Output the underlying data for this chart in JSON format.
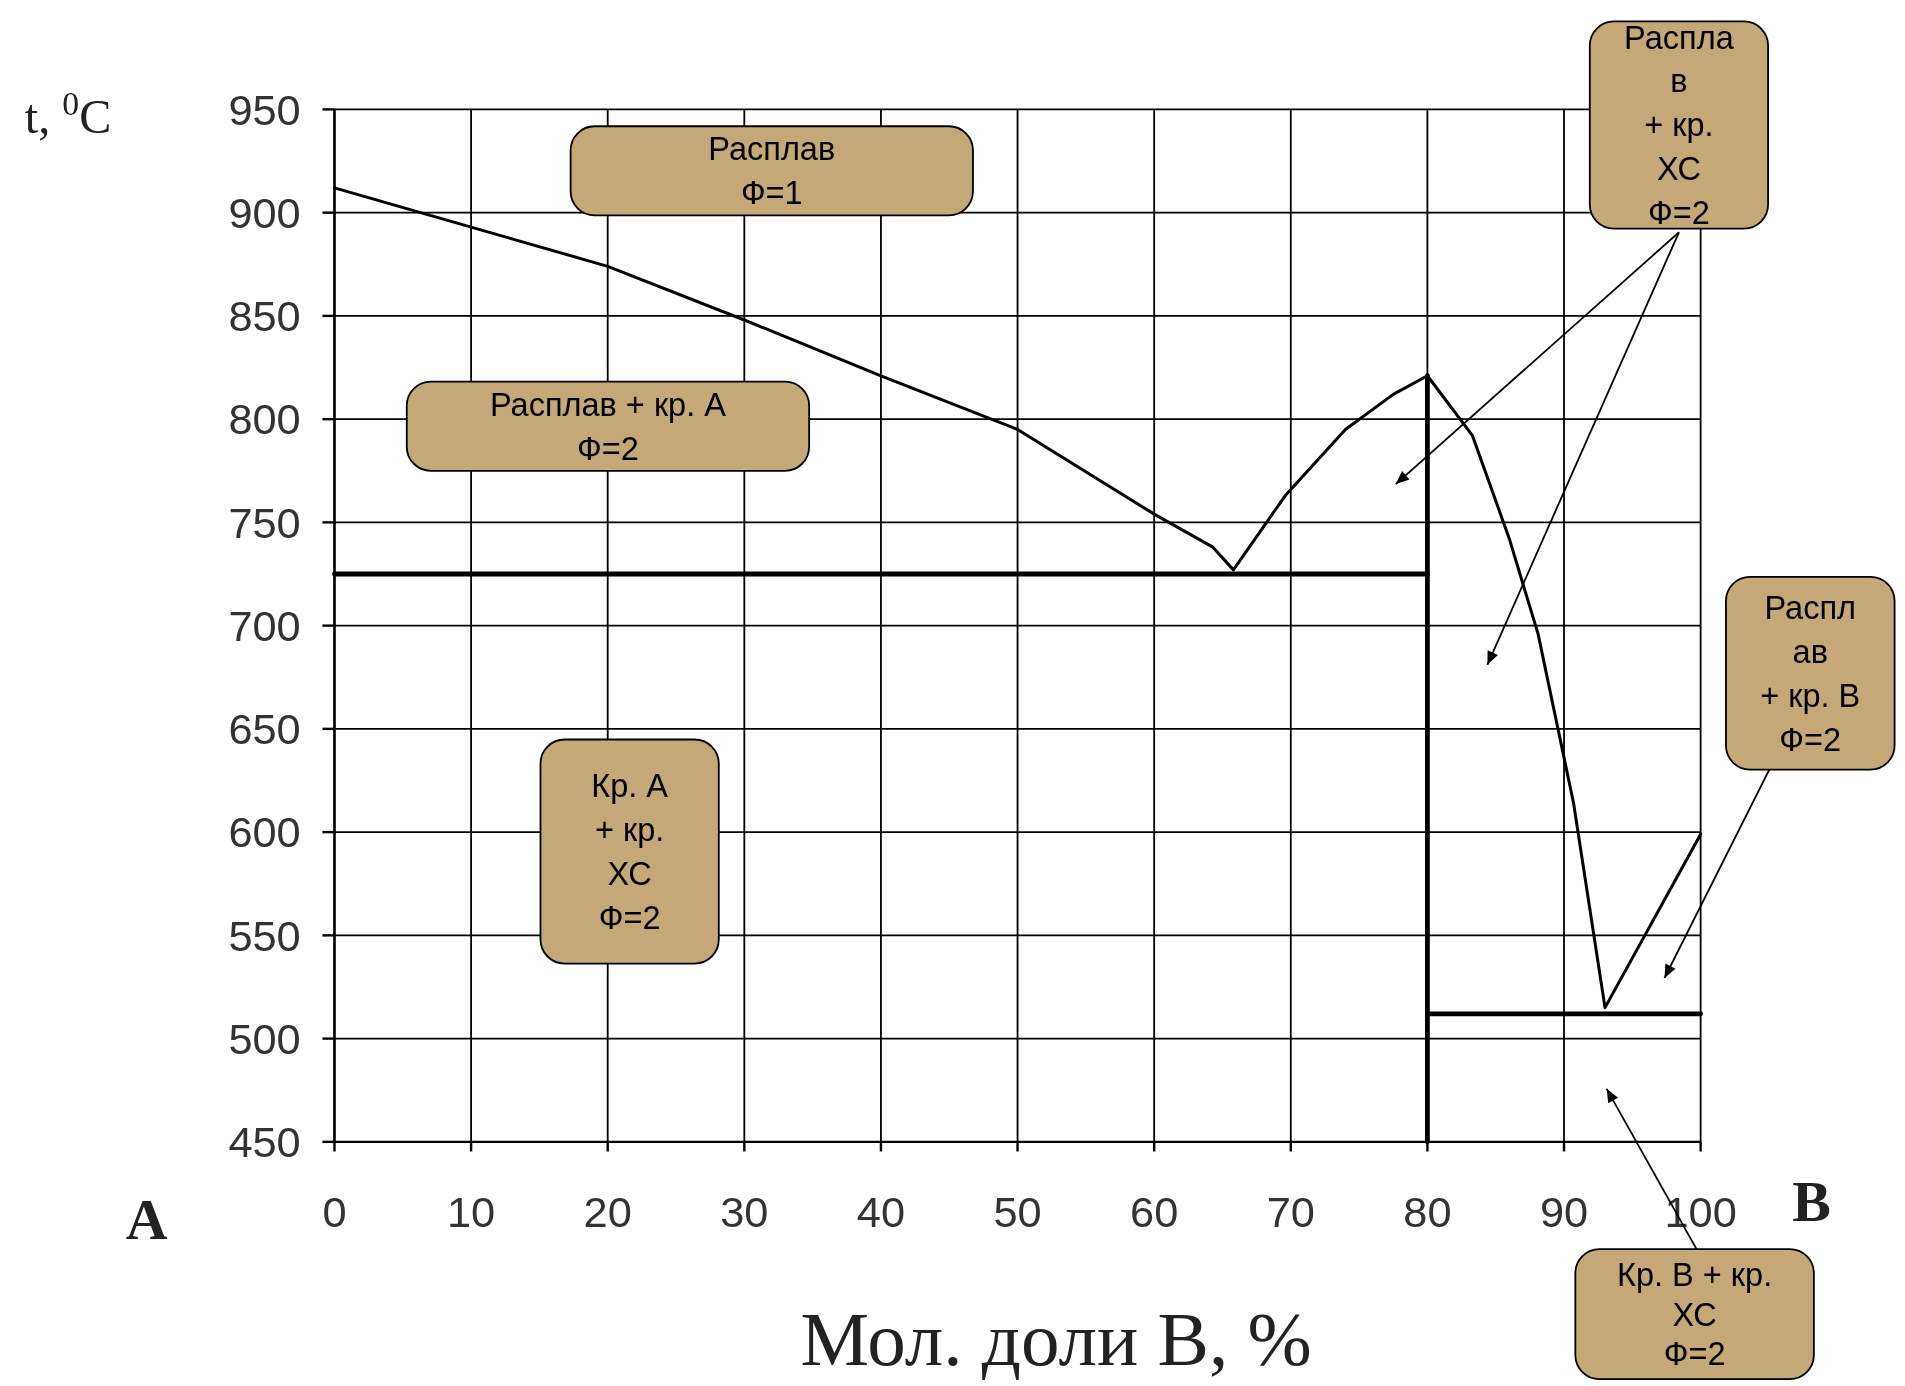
{
  "chart_data": {
    "type": "line",
    "xlabel": "Мол. доли В, %",
    "ylabel": "t, $^{0}$C",
    "xlim": [
      0,
      100
    ],
    "xticks": [
      0,
      10,
      20,
      30,
      40,
      50,
      60,
      70,
      80,
      90,
      100
    ],
    "ylim": [
      450,
      950
    ],
    "yticks": [
      450,
      500,
      550,
      600,
      650,
      700,
      750,
      800,
      850,
      900,
      950
    ],
    "grid": true,
    "marker": "none",
    "line_style": "solid",
    "series": [
      {
        "color": "#000000",
        "x": [
          0,
          10,
          20,
          30,
          40,
          50,
          60,
          64.3,
          65.8,
          69.6,
          74,
          77.5,
          80,
          83.3,
          86,
          88.1,
          90.7,
          93,
          100
        ],
        "values": [
          912,
          893,
          874,
          848,
          821,
          795,
          754,
          738,
          727,
          763,
          795,
          812,
          821,
          792,
          742,
          696,
          614,
          515,
          599
        ]
      },
      {
        "color": "#000000",
        "x": [
          0,
          80
        ],
        "values": [
          725,
          725
        ]
      },
      {
        "color": "#000000",
        "x": [
          80,
          80
        ],
        "values": [
          450,
          821
        ]
      },
      {
        "color": "#000000",
        "x": [
          80,
          100
        ],
        "values": [
          512,
          512
        ]
      }
    ],
    "annotations": [
      "Расплав\nФ=1",
      "Расплав + кр. А\nФ=2",
      "Кр. А\n+ кр.\nХС\nФ=2",
      "Распла\nв\n+ кр.\nХС\nФ=2",
      "Распл\nав\n+ кр. В\nФ=2",
      "Кр. В + кр.\nХС\nФ=2",
      "A",
      "B"
    ]
  }
}
